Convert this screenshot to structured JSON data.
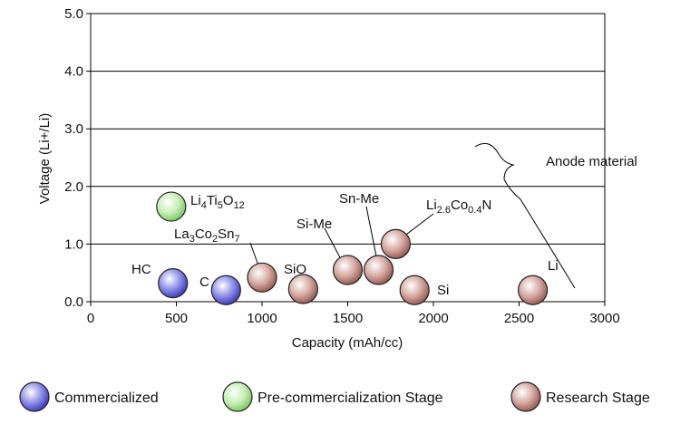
{
  "chart_data": {
    "type": "scatter",
    "title": "",
    "xlabel": "Capacity (mAh/cc)",
    "ylabel": "Voltage (Li+/Li)",
    "xlim": [
      0,
      3000
    ],
    "ylim": [
      0,
      5
    ],
    "x_ticks": [
      0,
      500,
      1000,
      1500,
      2000,
      2500,
      3000
    ],
    "x_tick_labels": [
      "0",
      "500",
      "1000",
      "1500",
      "2000",
      "2500",
      "3000"
    ],
    "y_ticks": [
      0,
      1,
      2,
      3,
      4,
      5
    ],
    "y_tick_labels": [
      "0.0",
      "1.0",
      "2.0",
      "3.0",
      "4.0",
      "5.0"
    ],
    "grid": "horizontal",
    "colors": {
      "commercialized": "#5a5ad6",
      "pre_commercialization": "#9fdc84",
      "research": "#b97b72"
    },
    "legend": [
      {
        "key": "commercialized",
        "label": "Commercialized"
      },
      {
        "key": "pre_commercialization",
        "label": "Pre-commercialization Stage"
      },
      {
        "key": "research",
        "label": "Research Stage"
      }
    ],
    "annotation": "Anode material",
    "points": [
      {
        "name": "HC",
        "x": 480,
        "y": 0.32,
        "stage": "commercialized"
      },
      {
        "name": "C",
        "x": 790,
        "y": 0.2,
        "stage": "commercialized"
      },
      {
        "name": "Li4Ti5O12",
        "x": 470,
        "y": 1.65,
        "stage": "pre_commercialization"
      },
      {
        "name": "La3Co2Sn7",
        "x": 1000,
        "y": 0.42,
        "stage": "research"
      },
      {
        "name": "SiO",
        "x": 1240,
        "y": 0.22,
        "stage": "research"
      },
      {
        "name": "Si-Me",
        "x": 1500,
        "y": 0.55,
        "stage": "research"
      },
      {
        "name": "Sn-Me",
        "x": 1680,
        "y": 0.55,
        "stage": "research"
      },
      {
        "name": "Li2.6Co0.4N",
        "x": 1780,
        "y": 1.0,
        "stage": "research"
      },
      {
        "name": "Si",
        "x": 1890,
        "y": 0.2,
        "stage": "research"
      },
      {
        "name": "Li",
        "x": 2580,
        "y": 0.2,
        "stage": "research"
      }
    ]
  }
}
